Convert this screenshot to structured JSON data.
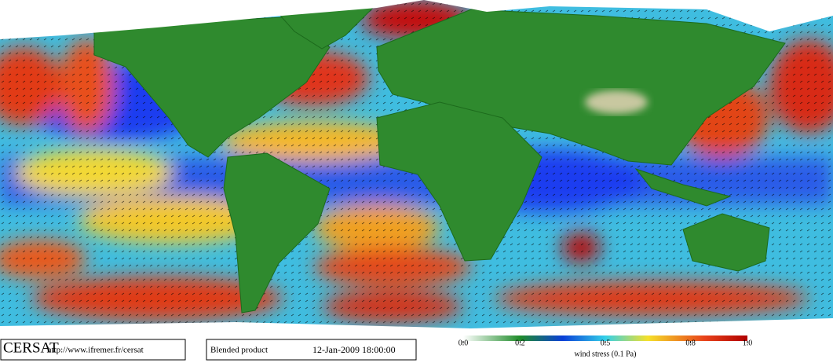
{
  "logo": "CERSAT",
  "url": "http://www.ifremer.fr/cersat",
  "product": "Blended product",
  "datetime": "12-Jan-2009 18:00:00",
  "colorbar": {
    "label": "wind stress (0.1 Pa)",
    "ticks": [
      {
        "value": 0,
        "label": "0.0"
      },
      {
        "value": 0.2,
        "label": "0.2"
      },
      {
        "value": 0.5,
        "label": "0.5"
      },
      {
        "value": 0.8,
        "label": "0.8"
      },
      {
        "value": 1,
        "label": "1.0"
      }
    ]
  }
}
